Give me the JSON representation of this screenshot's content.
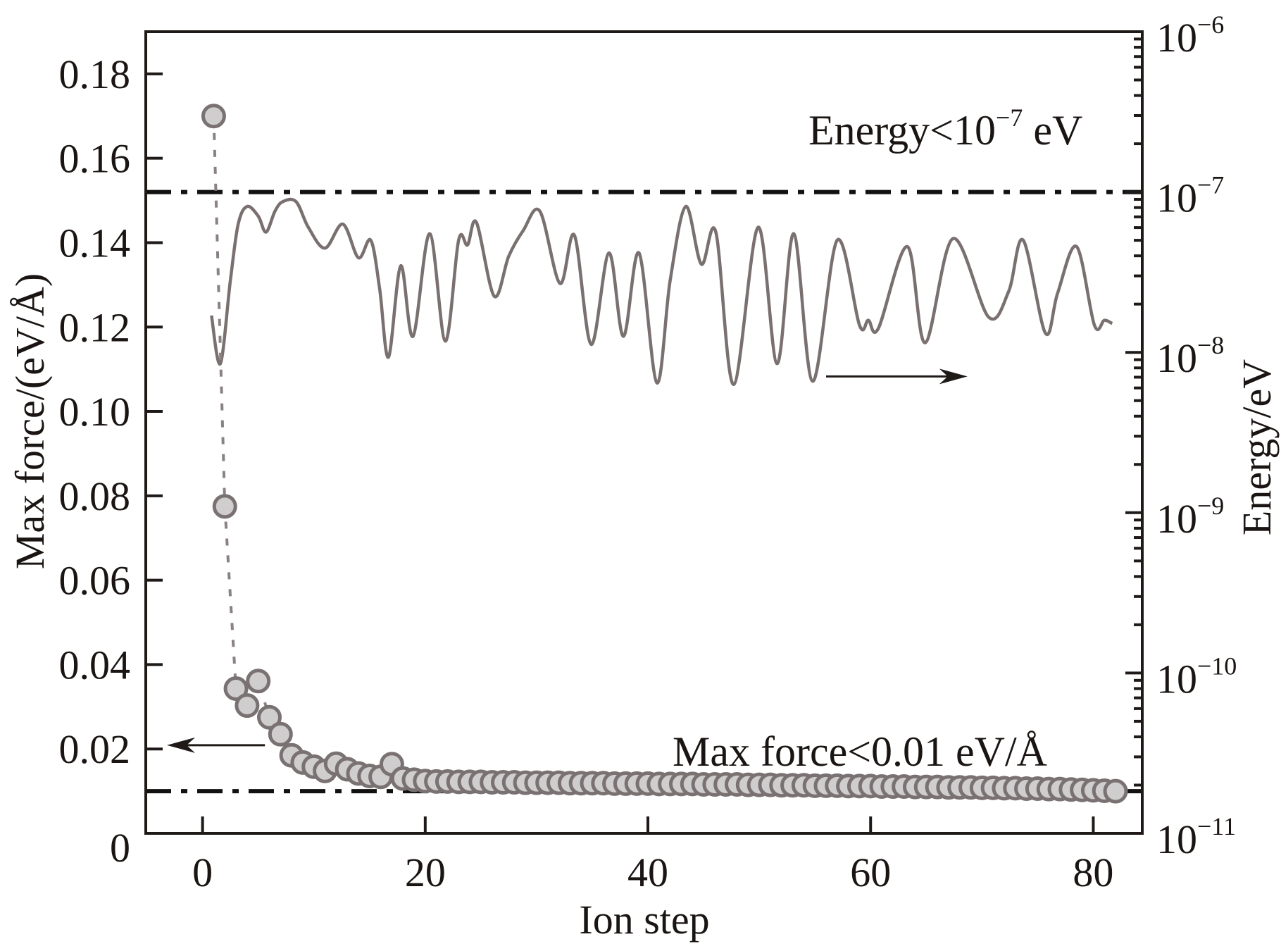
{
  "chart_data": {
    "type": "scatter+line",
    "title": "",
    "xlabel": "Ion step",
    "ylabel_left": "Max force/(eV/Å)",
    "ylabel_right": "Energy/eV",
    "xlim": [
      -5.1,
      84.4
    ],
    "ylim_left": [
      0,
      0.19
    ],
    "ylim_right": [
      1e-11,
      1e-06
    ],
    "yscale_right": "log",
    "grid": false,
    "x_ticks": [
      0,
      20,
      40,
      60,
      80
    ],
    "x_tick_labels": [
      "0",
      "20",
      "40",
      "60",
      "80"
    ],
    "y_left_ticks": [
      0,
      0.02,
      0.04,
      0.06,
      0.08,
      0.1,
      0.12,
      0.14,
      0.16,
      0.18
    ],
    "y_left_tick_labels": [
      "0",
      "0.02",
      "0.04",
      "0.06",
      "0.08",
      "0.10",
      "0.12",
      "0.14",
      "0.16",
      "0.18"
    ],
    "y_right_ticks": [
      {
        "base": "10",
        "exp": "−6",
        "value": 1e-06
      },
      {
        "base": "10",
        "exp": "−7",
        "value": 1e-07
      },
      {
        "base": "10",
        "exp": "−8",
        "value": 1e-08
      },
      {
        "base": "10",
        "exp": "−9",
        "value": 1e-09
      },
      {
        "base": "10",
        "exp": "−10",
        "value": 1e-10
      },
      {
        "base": "10",
        "exp": "−11",
        "value": 1e-11
      }
    ],
    "series": [
      {
        "name": "Max force",
        "axis": "left",
        "style": "circle markers with dashed connector",
        "color": "#7a7272",
        "fill": "#cfcdcd",
        "x": [
          1,
          2,
          3,
          4,
          5,
          6,
          7,
          8,
          9,
          10,
          11,
          12,
          13,
          14,
          15,
          16,
          17,
          18,
          19,
          20,
          21,
          22,
          23,
          24,
          25,
          26,
          27,
          28,
          29,
          30,
          31,
          32,
          33,
          34,
          35,
          36,
          37,
          38,
          39,
          40,
          41,
          42,
          43,
          44,
          45,
          46,
          47,
          48,
          49,
          50,
          51,
          52,
          53,
          54,
          55,
          56,
          57,
          58,
          59,
          60,
          61,
          62,
          63,
          64,
          65,
          66,
          67,
          68,
          69,
          70,
          71,
          72,
          73,
          74,
          75,
          76,
          77,
          78,
          79,
          80,
          81,
          82
        ],
        "values": [
          0.17,
          0.0775,
          0.0343,
          0.0303,
          0.0361,
          0.0275,
          0.0235,
          0.0185,
          0.0168,
          0.0158,
          0.0148,
          0.0165,
          0.0152,
          0.0142,
          0.0136,
          0.0134,
          0.0164,
          0.013,
          0.0127,
          0.0124,
          0.0123,
          0.0123,
          0.0122,
          0.0122,
          0.0122,
          0.0121,
          0.0121,
          0.0121,
          0.012,
          0.012,
          0.012,
          0.012,
          0.0119,
          0.0119,
          0.0119,
          0.0119,
          0.0118,
          0.0118,
          0.0118,
          0.0118,
          0.0117,
          0.0117,
          0.0117,
          0.0117,
          0.0116,
          0.0116,
          0.0116,
          0.0116,
          0.0115,
          0.0115,
          0.0115,
          0.0114,
          0.0114,
          0.0114,
          0.0113,
          0.0113,
          0.0113,
          0.0112,
          0.0112,
          0.0112,
          0.0111,
          0.0111,
          0.0111,
          0.011,
          0.011,
          0.011,
          0.0109,
          0.0109,
          0.0109,
          0.0108,
          0.0108,
          0.0107,
          0.0107,
          0.0106,
          0.0106,
          0.0105,
          0.0105,
          0.0104,
          0.0103,
          0.0102,
          0.0101,
          0.01
        ]
      },
      {
        "name": "Energy",
        "axis": "right",
        "style": "solid line",
        "color": "#7a7070",
        "x": [
          0.8,
          1.6,
          2.5,
          3.2,
          4.0,
          5.0,
          5.7,
          6.5,
          7.2,
          8.4,
          9.5,
          11.0,
          12.6,
          14.0,
          15.1,
          15.9,
          16.7,
          17.8,
          18.9,
          20.4,
          21.8,
          23.0,
          23.8,
          24.6,
          26.2,
          27.5,
          28.8,
          30.3,
          32.1,
          33.4,
          34.9,
          36.5,
          37.8,
          39.2,
          40.8,
          42.0,
          43.4,
          44.8,
          46.1,
          47.7,
          49.9,
          51.6,
          53.1,
          54.8,
          57.0,
          59.0,
          59.8,
          60.7,
          63.3,
          64.9,
          67.4,
          70.6,
          72.4,
          73.7,
          75.7,
          76.8,
          78.5,
          80.1,
          81.0,
          81.7
        ],
        "log10_values": [
          -7.77,
          -8.07,
          -7.55,
          -7.2,
          -7.09,
          -7.15,
          -7.25,
          -7.12,
          -7.06,
          -7.06,
          -7.22,
          -7.35,
          -7.2,
          -7.41,
          -7.3,
          -7.6,
          -8.03,
          -7.46,
          -7.9,
          -7.26,
          -7.93,
          -7.3,
          -7.33,
          -7.19,
          -7.65,
          -7.4,
          -7.24,
          -7.12,
          -7.57,
          -7.27,
          -7.95,
          -7.38,
          -7.9,
          -7.38,
          -8.19,
          -7.55,
          -7.09,
          -7.45,
          -7.25,
          -8.2,
          -7.22,
          -8.07,
          -7.26,
          -8.18,
          -7.3,
          -7.83,
          -7.8,
          -7.85,
          -7.34,
          -7.94,
          -7.29,
          -7.78,
          -7.62,
          -7.3,
          -7.88,
          -7.63,
          -7.34,
          -7.83,
          -7.8,
          -7.82
        ]
      }
    ],
    "reference_lines": [
      {
        "name": "energy-threshold",
        "axis": "right",
        "value": 1e-07,
        "style": "dash-dot"
      },
      {
        "name": "force-threshold",
        "axis": "left",
        "value": 0.01,
        "style": "dash-dot"
      }
    ],
    "annotations": [
      {
        "name": "energy-criterion",
        "text_main": "Energy<10",
        "text_sup": "−7",
        "text_tail": " eV"
      },
      {
        "name": "force-criterion",
        "text": "Max force<0.01 eV/Å"
      }
    ],
    "arrows": [
      {
        "name": "left-axis-arrow",
        "direction": "left",
        "points_to": "Max force axis",
        "at_x_steps": [
          5.6,
          -3.2
        ],
        "at_y_force": 0.0209
      },
      {
        "name": "right-axis-arrow",
        "direction": "right",
        "points_to": "Energy axis",
        "at_x_steps": [
          56.0,
          68.7
        ],
        "at_log10_energy": -8.15
      }
    ]
  }
}
